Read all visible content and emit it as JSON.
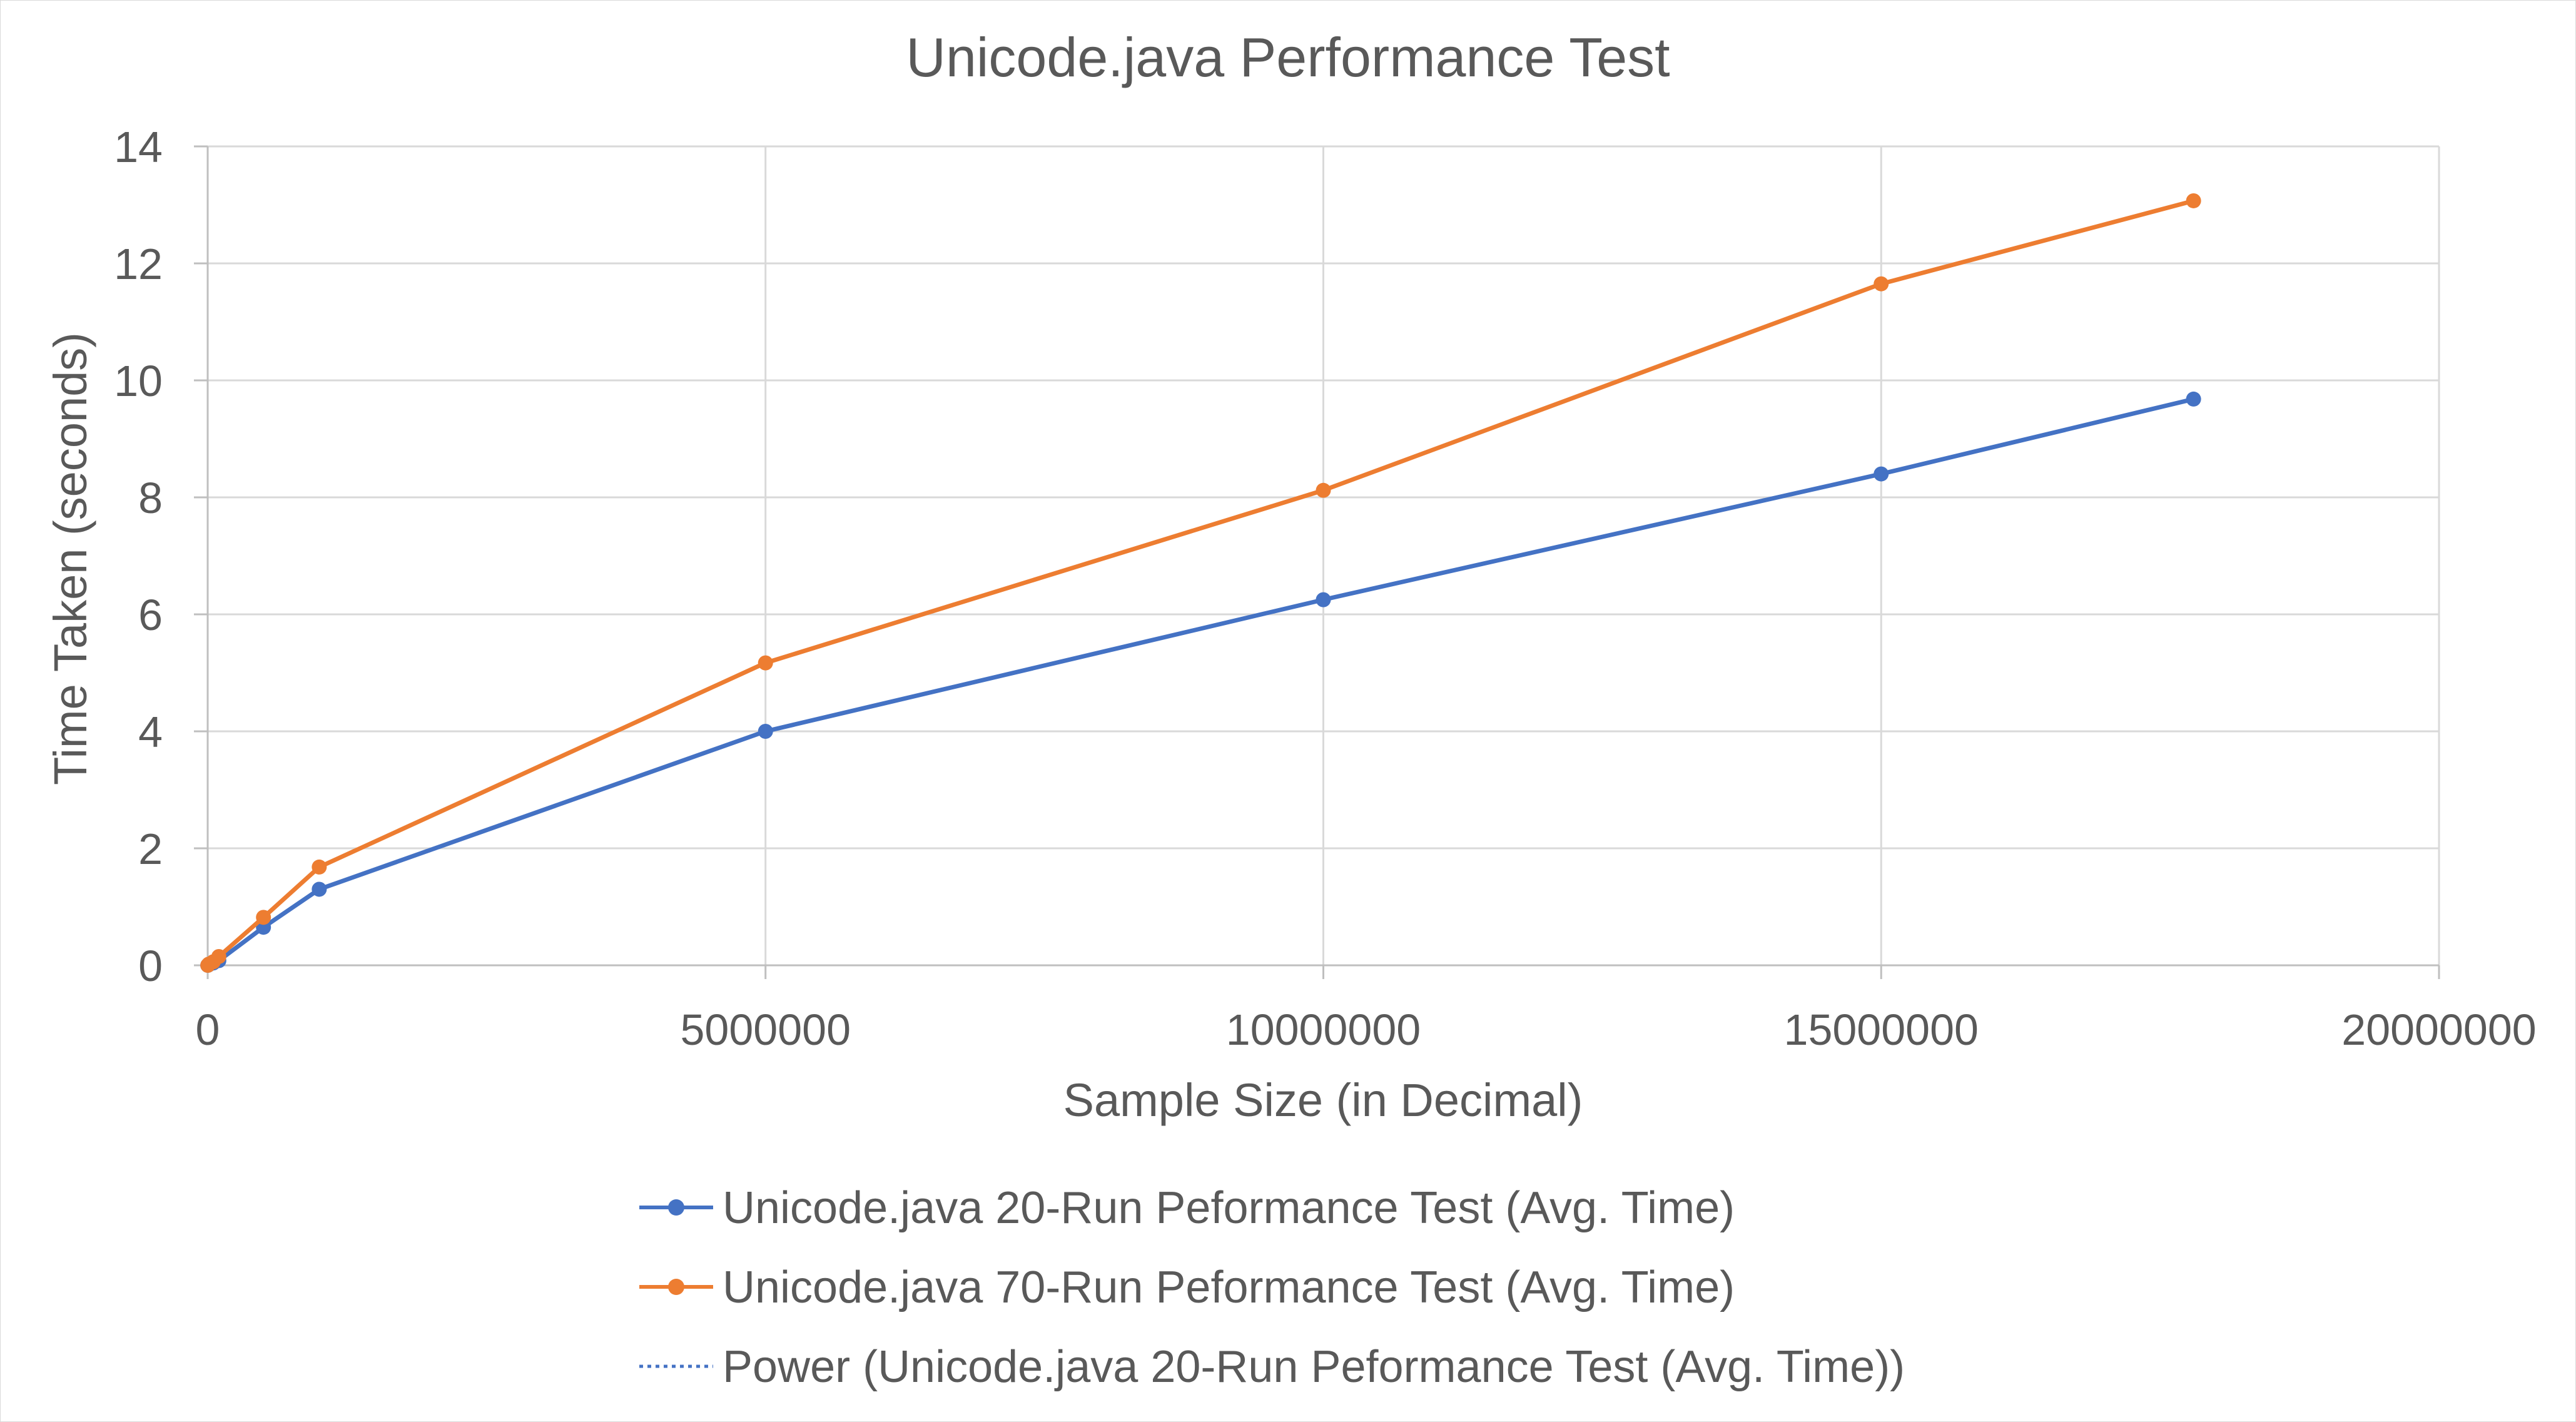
{
  "chart_data": {
    "type": "line",
    "title": "Unicode.java Performance Test",
    "xlabel": "Sample Size (in Decimal)",
    "ylabel": "Time Taken (seconds)",
    "xlim": [
      0,
      20000000
    ],
    "ylim": [
      0,
      14
    ],
    "x_ticks": [
      0,
      5000000,
      10000000,
      15000000,
      20000000
    ],
    "x_tick_labels": [
      "0",
      "5000000",
      "10000000",
      "15000000",
      "20000000"
    ],
    "y_ticks": [
      0,
      2,
      4,
      6,
      8,
      10,
      12,
      14
    ],
    "y_tick_labels": [
      "0",
      "2",
      "4",
      "6",
      "8",
      "10",
      "12",
      "14"
    ],
    "grid": "on",
    "legend_position": "bottom",
    "series": [
      {
        "name": "Unicode.java 20-Run Peformance Test (Avg. Time)",
        "color": "#4472c4",
        "marker": "circle",
        "line_style": "solid",
        "points": [
          {
            "x": 1000,
            "y": 0.0
          },
          {
            "x": 10000,
            "y": 0.01
          },
          {
            "x": 50000,
            "y": 0.04
          },
          {
            "x": 100000,
            "y": 0.08
          },
          {
            "x": 500000,
            "y": 0.65
          },
          {
            "x": 1000000,
            "y": 1.3
          },
          {
            "x": 5000000,
            "y": 4.0
          },
          {
            "x": 10000000,
            "y": 6.25
          },
          {
            "x": 15000000,
            "y": 8.4
          },
          {
            "x": 17800000,
            "y": 9.68
          }
        ]
      },
      {
        "name": "Unicode.java 70-Run Peformance Test (Avg. Time)",
        "color": "#ed7d31",
        "marker": "circle",
        "line_style": "solid",
        "points": [
          {
            "x": 1000,
            "y": 0.0
          },
          {
            "x": 10000,
            "y": 0.02
          },
          {
            "x": 50000,
            "y": 0.06
          },
          {
            "x": 100000,
            "y": 0.15
          },
          {
            "x": 500000,
            "y": 0.82
          },
          {
            "x": 1000000,
            "y": 1.68
          },
          {
            "x": 5000000,
            "y": 5.17
          },
          {
            "x": 10000000,
            "y": 8.12
          },
          {
            "x": 15000000,
            "y": 11.65
          },
          {
            "x": 17800000,
            "y": 13.07
          }
        ]
      },
      {
        "name": "Power (Unicode.java 20-Run Peformance Test (Avg. Time))",
        "color": "#4472c4",
        "marker": "none",
        "line_style": "dotted",
        "trendline": true
      }
    ]
  }
}
